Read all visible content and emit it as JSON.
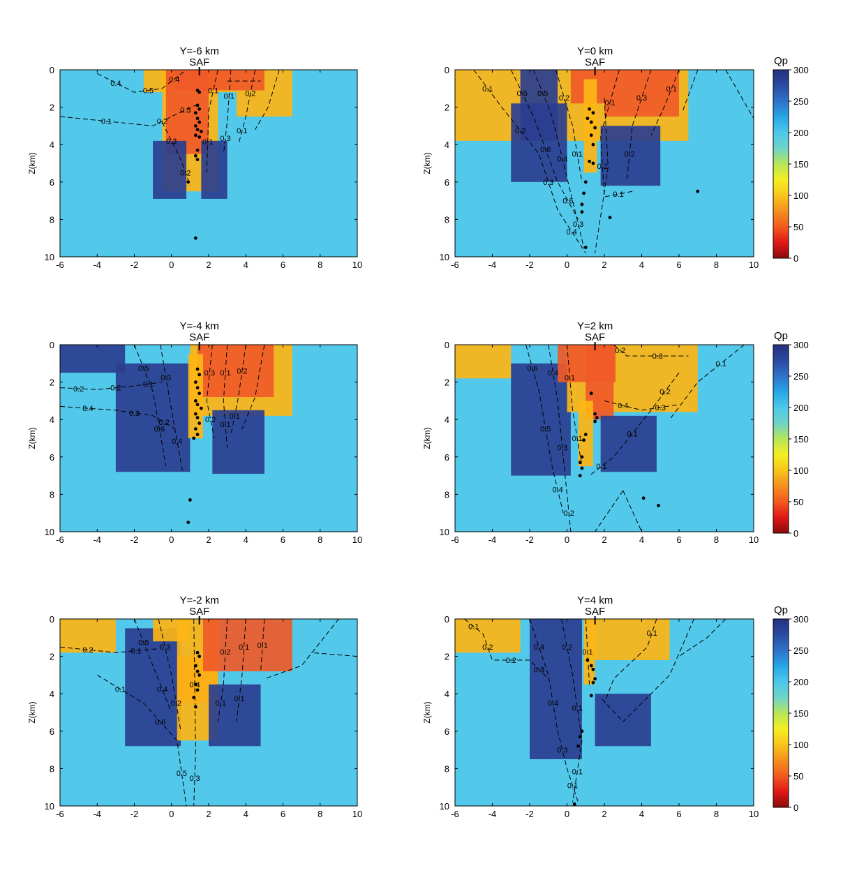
{
  "colorbar": {
    "label": "Qp",
    "ticks": [
      "0",
      "50",
      "100",
      "150",
      "200",
      "250",
      "300"
    ],
    "colors": [
      "#8c0a0a",
      "#e01818",
      "#f25a1e",
      "#f58f1d",
      "#f8c51c",
      "#f4ef22",
      "#b6e65a",
      "#6fd3c8",
      "#4dc8ea",
      "#27a6e6",
      "#2f72c8",
      "#2b4aa3",
      "#25307e"
    ]
  },
  "colors": {
    "background": "#52c8ea",
    "low_q": "#f05a28",
    "mid_q": "#fdb515",
    "high_q": "#2b3e8f",
    "contour": "#000000",
    "events": "#000000"
  },
  "chart_data": [
    {
      "type": "heatmap",
      "title": "Y=-6 km",
      "marker_label": "SAF",
      "marker_x": 1.5,
      "ylabel": "Z(km)",
      "xlim": [
        -6,
        10
      ],
      "ylim": [
        10,
        0
      ],
      "xticks": [
        "-6",
        "-4",
        "-2",
        "0",
        "2",
        "4",
        "6",
        "8",
        "10"
      ],
      "yticks": [
        "0",
        "2",
        "4",
        "6",
        "8",
        "10"
      ],
      "contour_labels": [
        "0.1",
        "0.2",
        "0.3",
        "0.4",
        "0.5",
        "0.4",
        "0.3",
        "0.2",
        "0.1",
        "0.1",
        "0.1",
        "0.3",
        "0.2",
        "0.1"
      ],
      "events": [
        [
          1.4,
          1.1
        ],
        [
          1.5,
          1.2
        ],
        [
          1.4,
          1.9
        ],
        [
          1.5,
          2.1
        ],
        [
          1.3,
          2.3
        ],
        [
          1.4,
          2.6
        ],
        [
          1.5,
          2.8
        ],
        [
          1.3,
          3.0
        ],
        [
          1.4,
          3.2
        ],
        [
          1.6,
          3.3
        ],
        [
          1.3,
          3.5
        ],
        [
          1.5,
          3.6
        ],
        [
          1.4,
          4.3
        ],
        [
          1.3,
          4.6
        ],
        [
          1.4,
          4.8
        ],
        [
          0.9,
          6.0
        ],
        [
          1.3,
          9.0
        ]
      ]
    },
    {
      "type": "heatmap",
      "title": "Y=0 km",
      "marker_label": "SAF",
      "marker_x": 1.5,
      "ylabel": "Z(km)",
      "xlim": [
        -6,
        10
      ],
      "ylim": [
        10,
        0
      ],
      "xticks": [
        "-6",
        "-4",
        "-2",
        "0",
        "2",
        "4",
        "6",
        "8",
        "10"
      ],
      "yticks": [
        "0",
        "2",
        "4",
        "6",
        "8",
        "10"
      ],
      "contour_labels": [
        "0.1",
        "0.2",
        "0.3",
        "0.4",
        "0.5",
        "0.6",
        "0.6",
        "0.5",
        "0.4",
        "0.3",
        "0.2",
        "0.1",
        "0.1",
        "0.2",
        "0.1",
        "0.3",
        "0.2",
        "0.1"
      ],
      "events": [
        [
          1.2,
          2.1
        ],
        [
          1.4,
          2.3
        ],
        [
          1.1,
          2.6
        ],
        [
          1.3,
          2.8
        ],
        [
          1.5,
          3.1
        ],
        [
          1.3,
          3.5
        ],
        [
          1.4,
          4.0
        ],
        [
          1.2,
          4.9
        ],
        [
          1.4,
          5.0
        ],
        [
          1.0,
          6.0
        ],
        [
          0.9,
          6.6
        ],
        [
          0.8,
          7.2
        ],
        [
          0.8,
          7.6
        ],
        [
          2.3,
          7.9
        ],
        [
          7.0,
          6.5
        ],
        [
          1.0,
          9.5
        ]
      ]
    },
    {
      "type": "heatmap",
      "title": "Y=-4 km",
      "marker_label": "SAF",
      "marker_x": 1.5,
      "ylabel": "Z(km)",
      "xlim": [
        -6,
        10
      ],
      "ylim": [
        10,
        0
      ],
      "xticks": [
        "-6",
        "-4",
        "-2",
        "0",
        "2",
        "4",
        "6",
        "8",
        "10"
      ],
      "yticks": [
        "0",
        "2",
        "4",
        "6",
        "8",
        "10"
      ],
      "contour_labels": [
        "0.2",
        "0.2",
        "0.1",
        "0.4",
        "0.3",
        "0.2",
        "0.5",
        "0.6",
        "0.5",
        "0.4",
        "0.3",
        "0.2",
        "0.1",
        "0.1",
        "0.2",
        "0.1"
      ],
      "events": [
        [
          1.4,
          1.3
        ],
        [
          1.5,
          1.6
        ],
        [
          1.3,
          2.0
        ],
        [
          1.4,
          2.3
        ],
        [
          1.5,
          2.6
        ],
        [
          1.3,
          3.0
        ],
        [
          1.4,
          3.2
        ],
        [
          1.6,
          3.4
        ],
        [
          1.3,
          3.7
        ],
        [
          1.4,
          3.9
        ],
        [
          1.5,
          4.2
        ],
        [
          1.3,
          4.5
        ],
        [
          1.4,
          4.8
        ],
        [
          1.2,
          5.0
        ],
        [
          1.0,
          8.3
        ],
        [
          0.9,
          9.5
        ]
      ]
    },
    {
      "type": "heatmap",
      "title": "Y=2 km",
      "marker_label": "SAF",
      "marker_x": 1.5,
      "ylabel": "Z(km)",
      "xlim": [
        -6,
        10
      ],
      "ylim": [
        10,
        0
      ],
      "xticks": [
        "-6",
        "-4",
        "-2",
        "0",
        "2",
        "4",
        "6",
        "8",
        "10"
      ],
      "yticks": [
        "0",
        "2",
        "4",
        "6",
        "8",
        "10"
      ],
      "contour_labels": [
        "0.6",
        "0.5",
        "0.4",
        "0.4",
        "0.3",
        "0.2",
        "0.1",
        "0.1",
        "0.2",
        "0.3",
        "0.4",
        "0.3",
        "0.2",
        "0.1",
        "0.1",
        "0.1"
      ],
      "events": [
        [
          1.3,
          2.6
        ],
        [
          1.5,
          3.7
        ],
        [
          1.6,
          3.9
        ],
        [
          1.5,
          4.1
        ],
        [
          1.0,
          4.8
        ],
        [
          0.9,
          5.1
        ],
        [
          0.8,
          6.0
        ],
        [
          0.7,
          6.3
        ],
        [
          0.8,
          6.6
        ],
        [
          0.7,
          7.0
        ],
        [
          4.1,
          8.2
        ],
        [
          4.9,
          8.6
        ]
      ]
    },
    {
      "type": "heatmap",
      "title": "Y=-2 km",
      "marker_label": "SAF",
      "marker_x": 1.5,
      "ylabel": "Z(km)",
      "xlim": [
        -6,
        10
      ],
      "ylim": [
        10,
        0
      ],
      "xticks": [
        "-6",
        "-4",
        "-2",
        "0",
        "2",
        "4",
        "6",
        "8",
        "10"
      ],
      "yticks": [
        "0",
        "2",
        "4",
        "6",
        "8",
        "10"
      ],
      "contour_labels": [
        "0.2",
        "0.1",
        "0.5",
        "0.4",
        "0.3",
        "0.2",
        "0.1",
        "0.6",
        "0.5",
        "0.4",
        "0.3",
        "0.2",
        "0.1",
        "0.1",
        "0.1",
        "0.1"
      ],
      "events": [
        [
          1.4,
          1.8
        ],
        [
          1.5,
          2.0
        ],
        [
          1.3,
          2.5
        ],
        [
          1.4,
          2.8
        ],
        [
          1.5,
          3.0
        ],
        [
          1.3,
          3.5
        ],
        [
          1.4,
          3.8
        ],
        [
          1.2,
          4.2
        ],
        [
          1.3,
          4.7
        ]
      ]
    },
    {
      "type": "heatmap",
      "title": "Y=4 km",
      "marker_label": "SAF",
      "marker_x": 1.5,
      "ylabel": "Z(km)",
      "xlim": [
        -6,
        10
      ],
      "ylim": [
        10,
        0
      ],
      "xticks": [
        "-6",
        "-4",
        "-2",
        "0",
        "2",
        "4",
        "6",
        "8",
        "10"
      ],
      "yticks": [
        "0",
        "2",
        "4",
        "6",
        "8",
        "10"
      ],
      "contour_labels": [
        "0.1",
        "0.2",
        "0.2",
        "0.3",
        "0.4",
        "0.4",
        "0.3",
        "0.1",
        "0.2",
        "0.1",
        "0.1",
        "0.1",
        "0.1"
      ],
      "events": [
        [
          1.1,
          2.2
        ],
        [
          1.3,
          2.5
        ],
        [
          1.4,
          2.7
        ],
        [
          1.5,
          3.2
        ],
        [
          1.4,
          3.4
        ],
        [
          1.3,
          4.1
        ],
        [
          0.8,
          6.0
        ],
        [
          0.7,
          6.3
        ],
        [
          0.6,
          6.8
        ],
        [
          0.4,
          9.9
        ]
      ]
    }
  ]
}
